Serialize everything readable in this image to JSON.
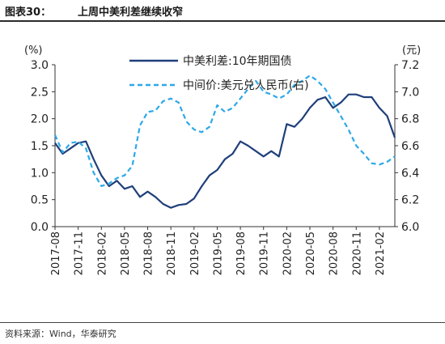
{
  "figure": {
    "number": "图表30：",
    "title": "上周中美利差继续收窄",
    "source": "资料来源：Wind，华泰研究"
  },
  "chart_data": {
    "type": "line",
    "title": "",
    "left_axis": {
      "unit_label": "(%)",
      "ylim": [
        0.0,
        3.0
      ],
      "ticks": [
        "0.0",
        "0.5",
        "1.0",
        "1.5",
        "2.0",
        "2.5",
        "3.0"
      ]
    },
    "right_axis": {
      "unit_label": "(元)",
      "ylim": [
        6.0,
        7.2
      ],
      "ticks": [
        "6.0",
        "6.2",
        "6.4",
        "6.6",
        "6.8",
        "7.0",
        "7.2"
      ]
    },
    "x_range": [
      "2017-08",
      "2021-04"
    ],
    "x_ticks": [
      "2017-08",
      "2017-11",
      "2018-02",
      "2018-05",
      "2018-08",
      "2018-11",
      "2019-02",
      "2019-05",
      "2019-08",
      "2019-11",
      "2020-02",
      "2020-05",
      "2020-08",
      "2020-11",
      "2021-02"
    ],
    "grid": false,
    "legend_position": "top-center",
    "colors": {
      "spread": "#1f3f7a",
      "fx": "#2da8e8"
    },
    "series": [
      {
        "name": "中美利差:10年期国债",
        "axis": "left",
        "style": "solid",
        "x": [
          "2017-08",
          "2017-09",
          "2017-10",
          "2017-11",
          "2017-12",
          "2018-01",
          "2018-02",
          "2018-03",
          "2018-04",
          "2018-05",
          "2018-06",
          "2018-07",
          "2018-08",
          "2018-09",
          "2018-10",
          "2018-11",
          "2018-12",
          "2019-01",
          "2019-02",
          "2019-03",
          "2019-04",
          "2019-05",
          "2019-06",
          "2019-07",
          "2019-08",
          "2019-09",
          "2019-10",
          "2019-11",
          "2019-12",
          "2020-01",
          "2020-02",
          "2020-03",
          "2020-04",
          "2020-05",
          "2020-06",
          "2020-07",
          "2020-08",
          "2020-09",
          "2020-10",
          "2020-11",
          "2020-12",
          "2021-01",
          "2021-02",
          "2021-03",
          "2021-04"
        ],
        "values": [
          1.55,
          1.35,
          1.45,
          1.55,
          1.58,
          1.25,
          0.95,
          0.75,
          0.85,
          0.7,
          0.75,
          0.55,
          0.65,
          0.55,
          0.42,
          0.35,
          0.4,
          0.42,
          0.52,
          0.75,
          0.95,
          1.05,
          1.25,
          1.35,
          1.58,
          1.5,
          1.4,
          1.3,
          1.4,
          1.3,
          1.9,
          1.85,
          2.0,
          2.2,
          2.35,
          2.4,
          2.2,
          2.3,
          2.45,
          2.45,
          2.4,
          2.4,
          2.2,
          2.05,
          1.65
        ]
      },
      {
        "name": "中间价:美元兑人民币(右)",
        "axis": "right",
        "style": "dashed",
        "x": [
          "2017-08",
          "2017-09",
          "2017-10",
          "2017-11",
          "2017-12",
          "2018-01",
          "2018-02",
          "2018-03",
          "2018-04",
          "2018-05",
          "2018-06",
          "2018-07",
          "2018-08",
          "2018-09",
          "2018-10",
          "2018-11",
          "2018-12",
          "2019-01",
          "2019-02",
          "2019-03",
          "2019-04",
          "2019-05",
          "2019-06",
          "2019-07",
          "2019-08",
          "2019-09",
          "2019-10",
          "2019-11",
          "2019-12",
          "2020-01",
          "2020-02",
          "2020-03",
          "2020-04",
          "2020-05",
          "2020-06",
          "2020-07",
          "2020-08",
          "2020-09",
          "2020-10",
          "2020-11",
          "2020-12",
          "2021-01",
          "2021-02",
          "2021-03",
          "2021-04"
        ],
        "values": [
          6.68,
          6.55,
          6.62,
          6.63,
          6.58,
          6.4,
          6.3,
          6.32,
          6.36,
          6.38,
          6.45,
          6.75,
          6.85,
          6.86,
          6.93,
          6.95,
          6.92,
          6.78,
          6.72,
          6.7,
          6.74,
          6.9,
          6.85,
          6.88,
          6.95,
          7.02,
          7.08,
          7.0,
          6.98,
          6.95,
          6.98,
          7.05,
          7.08,
          7.12,
          7.08,
          7.02,
          6.92,
          6.82,
          6.72,
          6.6,
          6.54,
          6.47,
          6.46,
          6.48,
          6.52
        ]
      }
    ]
  }
}
